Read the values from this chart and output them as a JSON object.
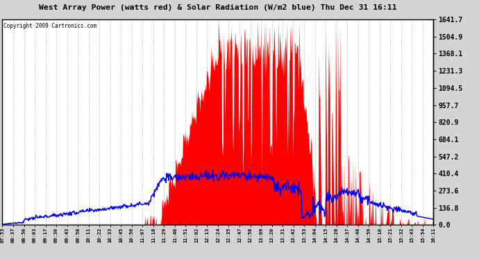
{
  "title": "West Array Power (watts red) & Solar Radiation (W/m2 blue) Thu Dec 31 16:11",
  "copyright": "Copyright 2009 Cartronics.com",
  "y_right_ticks": [
    0.0,
    136.8,
    273.6,
    410.4,
    547.2,
    684.1,
    820.9,
    957.7,
    1094.5,
    1231.3,
    1368.1,
    1504.9,
    1641.7
  ],
  "ymax": 1641.7,
  "ymin": 0.0,
  "bg_color": "#d4d4d4",
  "plot_bg": "#ffffff",
  "red_color": "#ff0000",
  "blue_color": "#0000ee",
  "x_labels": [
    "07:53",
    "08:37",
    "08:50",
    "09:03",
    "09:17",
    "09:30",
    "09:43",
    "09:58",
    "10:11",
    "10:22",
    "10:33",
    "10:45",
    "10:56",
    "11:07",
    "11:18",
    "11:29",
    "11:40",
    "11:51",
    "12:02",
    "12:13",
    "12:24",
    "12:35",
    "12:47",
    "12:58",
    "13:09",
    "13:20",
    "13:31",
    "13:42",
    "13:53",
    "14:04",
    "14:15",
    "14:26",
    "14:37",
    "14:48",
    "14:59",
    "15:10",
    "15:21",
    "15:32",
    "15:43",
    "15:54",
    "16:11"
  ],
  "n_points": 820
}
